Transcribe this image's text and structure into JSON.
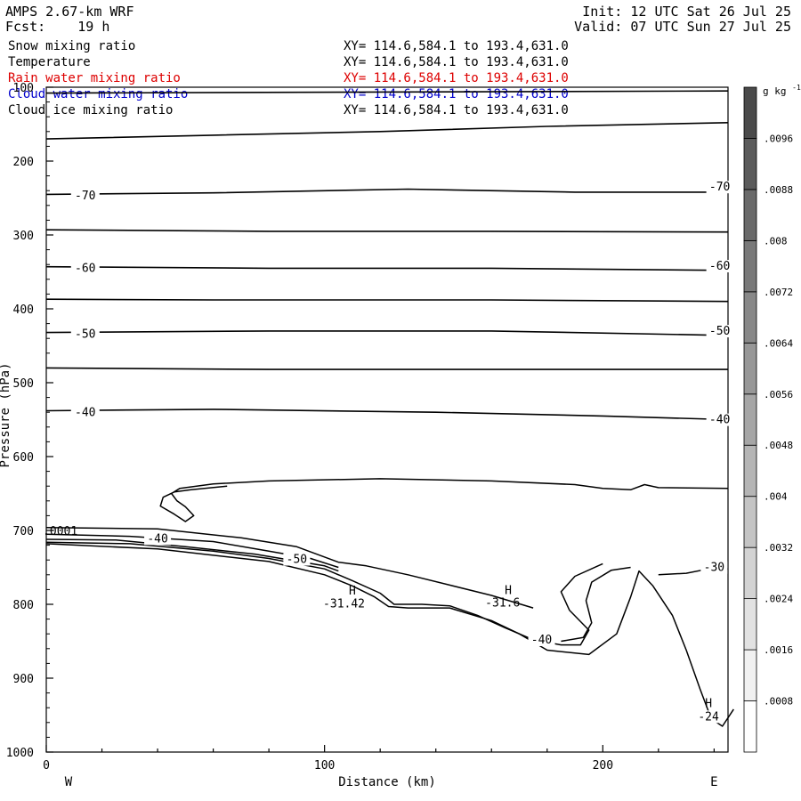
{
  "header": {
    "model": "AMPS 2.67-km WRF",
    "init": "Init: 12 UTC Sat 26 Jul 25",
    "fcst": "Fcst:    19 h",
    "valid": "Valid: 07 UTC Sun 27 Jul 25"
  },
  "fields": [
    {
      "name": "Snow mixing ratio",
      "xy": "XY= 114.6,584.1 to 193.4,631.0",
      "color": "#000000"
    },
    {
      "name": "Temperature",
      "xy": "XY= 114.6,584.1 to 193.4,631.0",
      "color": "#000000"
    },
    {
      "name": "Rain water mixing ratio",
      "xy": "XY= 114.6,584.1 to 193.4,631.0",
      "color": "#dd0000"
    },
    {
      "name": "Cloud water mixing ratio",
      "xy": "XY= 114.6,584.1 to 193.4,631.0",
      "color": "#0000cc"
    },
    {
      "name": "Cloud ice mixing ratio",
      "xy": "XY= 114.6,584.1 to 193.4,631.0",
      "color": "#000000"
    }
  ],
  "chart_data": {
    "type": "line",
    "xlabel": "Distance (km)",
    "ylabel": "Pressure (hPa)",
    "xlim": [
      0,
      245
    ],
    "ylim": [
      100,
      1000
    ],
    "x_ticks": [
      0,
      100,
      200
    ],
    "y_ticks": [
      100,
      200,
      300,
      400,
      500,
      600,
      700,
      800,
      900,
      1000
    ],
    "west_label": "W",
    "east_label": "E",
    "contour_color": "#000000",
    "isotherms": [
      {
        "label": "",
        "points": [
          [
            0,
            108
          ],
          [
            245,
            105
          ]
        ]
      },
      {
        "label": "",
        "points": [
          [
            0,
            170
          ],
          [
            60,
            165
          ],
          [
            120,
            160
          ],
          [
            180,
            153
          ],
          [
            245,
            148
          ]
        ]
      },
      {
        "label": "-70",
        "points": [
          [
            0,
            245
          ],
          [
            60,
            243
          ],
          [
            130,
            238
          ],
          [
            190,
            242
          ],
          [
            245,
            242
          ]
        ]
      },
      {
        "label": "",
        "points": [
          [
            0,
            293
          ],
          [
            80,
            295
          ],
          [
            160,
            295
          ],
          [
            245,
            296
          ]
        ]
      },
      {
        "label": "-60",
        "points": [
          [
            0,
            343
          ],
          [
            80,
            345
          ],
          [
            160,
            345
          ],
          [
            245,
            348
          ]
        ]
      },
      {
        "label": "",
        "points": [
          [
            0,
            387
          ],
          [
            60,
            388
          ],
          [
            160,
            388
          ],
          [
            245,
            390
          ]
        ]
      },
      {
        "label": "-50",
        "points": [
          [
            0,
            432
          ],
          [
            80,
            430
          ],
          [
            160,
            430
          ],
          [
            245,
            436
          ]
        ]
      },
      {
        "label": "",
        "points": [
          [
            0,
            480
          ],
          [
            80,
            482
          ],
          [
            160,
            482
          ],
          [
            245,
            482
          ]
        ]
      },
      {
        "label": "-40",
        "points": [
          [
            0,
            538
          ],
          [
            60,
            536
          ],
          [
            140,
            540
          ],
          [
            200,
            545
          ],
          [
            245,
            550
          ]
        ]
      }
    ],
    "contour_lines": [
      {
        "points": [
          [
            245,
            643
          ],
          [
            220,
            642
          ],
          [
            215,
            638
          ],
          [
            210,
            645
          ],
          [
            200,
            643
          ],
          [
            190,
            638
          ],
          [
            160,
            633
          ],
          [
            120,
            630
          ],
          [
            80,
            633
          ],
          [
            60,
            637
          ],
          [
            48,
            643
          ],
          [
            45,
            650
          ],
          [
            47,
            660
          ],
          [
            50,
            668
          ],
          [
            53,
            680
          ],
          [
            50,
            688
          ],
          [
            46,
            678
          ],
          [
            41,
            667
          ],
          [
            42,
            655
          ],
          [
            46,
            648
          ],
          [
            52,
            645
          ],
          [
            65,
            640
          ]
        ]
      },
      {
        "points": [
          [
            0,
            705
          ],
          [
            30,
            708
          ],
          [
            60,
            715
          ],
          [
            80,
            728
          ],
          [
            95,
            738
          ],
          [
            105,
            750
          ]
        ]
      },
      {
        "points": [
          [
            0,
            712
          ],
          [
            25,
            713
          ],
          [
            50,
            722
          ],
          [
            75,
            732
          ],
          [
            100,
            748
          ],
          [
            105,
            755
          ]
        ]
      },
      {
        "points": [
          [
            0,
            696
          ],
          [
            40,
            698
          ],
          [
            70,
            710
          ],
          [
            90,
            722
          ],
          [
            105,
            743
          ],
          [
            115,
            748
          ],
          [
            130,
            760
          ],
          [
            145,
            774
          ],
          [
            160,
            788
          ],
          [
            175,
            805
          ]
        ]
      },
      {
        "points": [
          [
            0,
            716
          ],
          [
            30,
            718
          ],
          [
            60,
            728
          ],
          [
            80,
            738
          ],
          [
            100,
            752
          ],
          [
            110,
            768
          ],
          [
            120,
            785
          ],
          [
            125,
            800
          ],
          [
            135,
            800
          ],
          [
            145,
            802
          ],
          [
            155,
            815
          ],
          [
            165,
            832
          ],
          [
            175,
            848
          ],
          [
            185,
            855
          ],
          [
            192,
            855
          ],
          [
            195,
            835
          ],
          [
            188,
            808
          ],
          [
            185,
            783
          ],
          [
            190,
            762
          ],
          [
            200,
            745
          ]
        ]
      },
      {
        "points": [
          [
            185,
            850
          ],
          [
            193,
            845
          ],
          [
            196,
            825
          ],
          [
            194,
            795
          ],
          [
            196,
            770
          ],
          [
            203,
            754
          ],
          [
            210,
            750
          ]
        ]
      },
      {
        "points": [
          [
            0,
            718
          ],
          [
            40,
            725
          ],
          [
            80,
            742
          ],
          [
            100,
            760
          ],
          [
            110,
            775
          ],
          [
            118,
            790
          ],
          [
            123,
            803
          ],
          [
            130,
            805
          ],
          [
            145,
            805
          ],
          [
            160,
            822
          ],
          [
            170,
            840
          ],
          [
            180,
            862
          ],
          [
            195,
            868
          ],
          [
            205,
            840
          ],
          [
            210,
            790
          ],
          [
            213,
            755
          ],
          [
            218,
            775
          ],
          [
            225,
            815
          ],
          [
            230,
            862
          ],
          [
            235,
            915
          ],
          [
            239,
            955
          ],
          [
            243,
            965
          ],
          [
            247,
            942
          ]
        ]
      },
      {
        "points": [
          [
            220,
            760
          ],
          [
            230,
            758
          ],
          [
            238,
            752
          ],
          [
            245,
            752
          ]
        ]
      }
    ],
    "annotations": [
      {
        "text": "H",
        "x": 110,
        "y": 787
      },
      {
        "text": "-31.42",
        "x": 107,
        "y": 804
      },
      {
        "text": "H",
        "x": 166,
        "y": 786
      },
      {
        "text": "-31.6",
        "x": 164,
        "y": 803
      },
      {
        "text": "H",
        "x": 238,
        "y": 939
      },
      {
        "text": "-24",
        "x": 238,
        "y": 957
      },
      {
        "text": "-40",
        "x": 40,
        "y": 716
      },
      {
        "text": "-50",
        "x": 90,
        "y": 744
      },
      {
        "text": "-40",
        "x": 178,
        "y": 853
      },
      {
        "text": "-30",
        "x": 240,
        "y": 755
      },
      {
        "text": "-70",
        "x": 242,
        "y": 240
      },
      {
        "text": "-60",
        "x": 242,
        "y": 347
      },
      {
        "text": "-50",
        "x": 242,
        "y": 435
      },
      {
        "text": "-40",
        "x": 242,
        "y": 555
      },
      {
        "text": ".0001",
        "x": 5,
        "y": 706
      }
    ],
    "colorbar": {
      "unit_main": "g kg",
      "unit_exp": "-1",
      "ticks": [
        ".0096",
        ".0088",
        ".008",
        ".0072",
        ".0064",
        ".0056",
        ".0048",
        ".004",
        ".0032",
        ".0024",
        ".0016",
        ".0008"
      ],
      "colors": [
        "#ffffff",
        "#f1f1f1",
        "#e2e2e2",
        "#d3d3d3",
        "#c4c4c4",
        "#b5b5b5",
        "#a6a6a6",
        "#979797",
        "#888888",
        "#797979",
        "#6a6a6a",
        "#5b5b5b",
        "#4a4a4a"
      ]
    }
  }
}
